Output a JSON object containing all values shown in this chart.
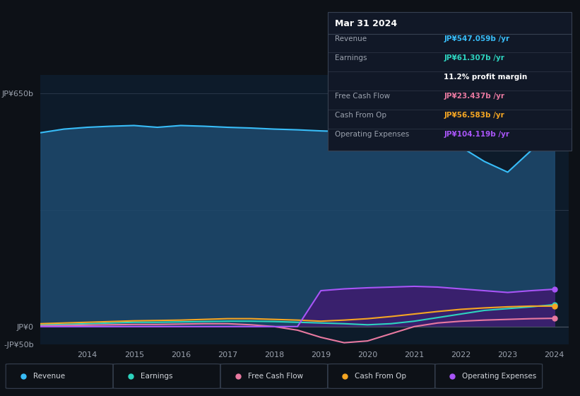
{
  "bg_color": "#0d1117",
  "plot_bg_color": "#0d1b2a",
  "title_box": {
    "date": "Mar 31 2024",
    "rows": [
      {
        "label": "Revenue",
        "value": "JP¥547.059b /yr",
        "value_color": "#38bdf8"
      },
      {
        "label": "Earnings",
        "value": "JP¥61.307b /yr",
        "value_color": "#2dd4bf"
      },
      {
        "label": "",
        "value": "11.2% profit margin",
        "value_color": "#ffffff"
      },
      {
        "label": "Free Cash Flow",
        "value": "JP¥23.437b /yr",
        "value_color": "#e879a0"
      },
      {
        "label": "Cash From Op",
        "value": "JP¥56.583b /yr",
        "value_color": "#f5a623"
      },
      {
        "label": "Operating Expenses",
        "value": "JP¥104.119b /yr",
        "value_color": "#a855f7"
      }
    ]
  },
  "ylim": [
    -50,
    700
  ],
  "xlabel_years": [
    2014,
    2015,
    2016,
    2017,
    2018,
    2019,
    2020,
    2021,
    2022,
    2023,
    2024
  ],
  "series": {
    "revenue": {
      "color": "#38bdf8",
      "fill_color": "#1e4a6e",
      "label": "Revenue",
      "x": [
        2013.0,
        2013.5,
        2014.0,
        2014.5,
        2015.0,
        2015.5,
        2016.0,
        2016.5,
        2017.0,
        2017.5,
        2018.0,
        2018.5,
        2019.0,
        2019.5,
        2020.0,
        2020.5,
        2021.0,
        2021.5,
        2022.0,
        2022.5,
        2023.0,
        2023.5,
        2024.0
      ],
      "y": [
        540,
        550,
        555,
        558,
        560,
        555,
        560,
        558,
        555,
        553,
        550,
        548,
        545,
        543,
        540,
        538,
        535,
        530,
        500,
        460,
        430,
        490,
        547
      ]
    },
    "earnings": {
      "color": "#2dd4bf",
      "label": "Earnings",
      "x": [
        2013.0,
        2013.5,
        2014.0,
        2014.5,
        2015.0,
        2015.5,
        2016.0,
        2016.5,
        2017.0,
        2017.5,
        2018.0,
        2018.5,
        2019.0,
        2019.5,
        2020.0,
        2020.5,
        2021.0,
        2021.5,
        2022.0,
        2022.5,
        2023.0,
        2023.5,
        2024.0
      ],
      "y": [
        5,
        6,
        8,
        10,
        12,
        12,
        13,
        14,
        15,
        15,
        14,
        12,
        10,
        8,
        5,
        8,
        15,
        25,
        35,
        45,
        50,
        55,
        61
      ]
    },
    "free_cash_flow": {
      "color": "#e879a0",
      "label": "Free Cash Flow",
      "x": [
        2013.0,
        2013.5,
        2014.0,
        2014.5,
        2015.0,
        2015.5,
        2016.0,
        2016.5,
        2017.0,
        2017.5,
        2018.0,
        2018.5,
        2019.0,
        2019.5,
        2020.0,
        2020.5,
        2021.0,
        2021.5,
        2022.0,
        2022.5,
        2023.0,
        2023.5,
        2024.0
      ],
      "y": [
        2,
        3,
        4,
        5,
        6,
        6,
        7,
        8,
        8,
        5,
        0,
        -10,
        -30,
        -45,
        -40,
        -20,
        0,
        10,
        15,
        18,
        20,
        22,
        23
      ]
    },
    "cash_from_op": {
      "color": "#f5a623",
      "label": "Cash From Op",
      "x": [
        2013.0,
        2013.5,
        2014.0,
        2014.5,
        2015.0,
        2015.5,
        2016.0,
        2016.5,
        2017.0,
        2017.5,
        2018.0,
        2018.5,
        2019.0,
        2019.5,
        2020.0,
        2020.5,
        2021.0,
        2021.5,
        2022.0,
        2022.5,
        2023.0,
        2023.5,
        2024.0
      ],
      "y": [
        8,
        10,
        12,
        14,
        16,
        17,
        18,
        20,
        22,
        22,
        20,
        18,
        15,
        18,
        22,
        28,
        35,
        42,
        48,
        52,
        55,
        57,
        57
      ]
    },
    "operating_expenses": {
      "color": "#a855f7",
      "fill_color": "#3b1f6e",
      "label": "Operating Expenses",
      "x": [
        2013.0,
        2013.5,
        2014.0,
        2014.5,
        2015.0,
        2015.5,
        2016.0,
        2016.5,
        2017.0,
        2017.5,
        2018.0,
        2018.5,
        2019.0,
        2019.5,
        2020.0,
        2020.5,
        2021.0,
        2021.5,
        2022.0,
        2022.5,
        2023.0,
        2023.5,
        2024.0
      ],
      "y": [
        0,
        0,
        0,
        0,
        0,
        0,
        0,
        0,
        0,
        0,
        0,
        0,
        100,
        105,
        108,
        110,
        112,
        110,
        105,
        100,
        95,
        100,
        104
      ]
    }
  },
  "legend": [
    {
      "label": "Revenue",
      "color": "#38bdf8"
    },
    {
      "label": "Earnings",
      "color": "#2dd4bf"
    },
    {
      "label": "Free Cash Flow",
      "color": "#e879a0"
    },
    {
      "label": "Cash From Op",
      "color": "#f5a623"
    },
    {
      "label": "Operating Expenses",
      "color": "#a855f7"
    }
  ]
}
